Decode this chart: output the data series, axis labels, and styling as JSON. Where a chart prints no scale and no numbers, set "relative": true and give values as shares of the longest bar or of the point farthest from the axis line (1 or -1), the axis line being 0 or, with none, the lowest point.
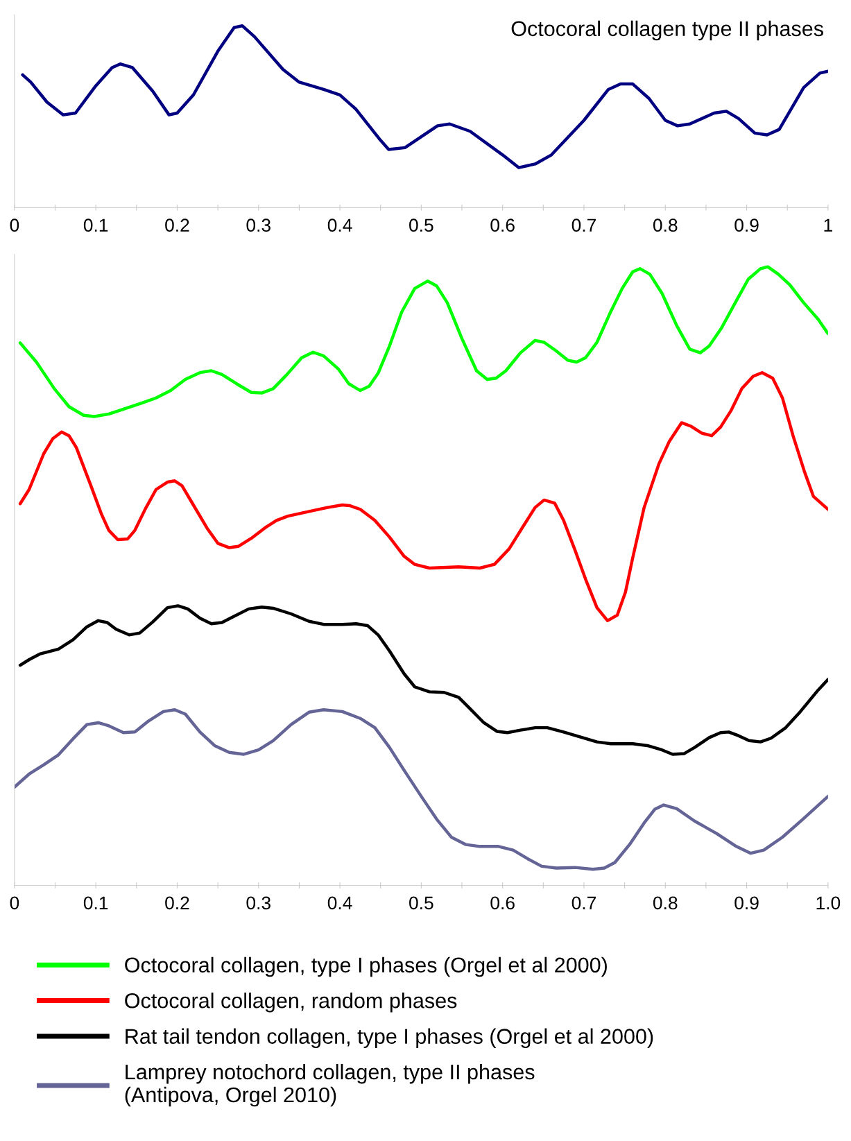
{
  "chart_data": [
    {
      "type": "line",
      "title": "Octocoral collagen type II phases",
      "relative": true,
      "grid": false,
      "marker": "none",
      "line_style": "solid",
      "xlim": [
        0,
        1
      ],
      "xticks": [
        0,
        {
          "value": 0.05,
          "label": null
        },
        0.1,
        {
          "value": 0.15,
          "label": null
        },
        0.2,
        {
          "value": 0.25,
          "label": null
        },
        0.3,
        {
          "value": 0.35,
          "label": null
        },
        0.4,
        {
          "value": 0.45,
          "label": null
        },
        0.5,
        {
          "value": 0.55,
          "label": null
        },
        0.6,
        {
          "value": 0.65,
          "label": null
        },
        0.7,
        {
          "value": 0.75,
          "label": null
        },
        0.8,
        {
          "value": 0.85,
          "label": null
        },
        0.9,
        {
          "value": 0.95,
          "label": null
        },
        1
      ],
      "series": [
        {
          "color": "#000080",
          "x": [
            0.01,
            0.02,
            0.04,
            0.06,
            0.075,
            0.1,
            0.12,
            0.13,
            0.145,
            0.17,
            0.19,
            0.2,
            0.22,
            0.25,
            0.27,
            0.28,
            0.295,
            0.33,
            0.35,
            0.38,
            0.4,
            0.42,
            0.45,
            0.46,
            0.48,
            0.5,
            0.52,
            0.535,
            0.56,
            0.6,
            0.62,
            0.64,
            0.66,
            0.7,
            0.73,
            0.745,
            0.76,
            0.78,
            0.8,
            0.815,
            0.83,
            0.86,
            0.875,
            0.89,
            0.91,
            0.925,
            0.94,
            0.97,
            0.99,
            1.0
          ],
          "values": [
            0.73,
            0.69,
            0.58,
            0.51,
            0.52,
            0.67,
            0.77,
            0.79,
            0.77,
            0.64,
            0.51,
            0.52,
            0.62,
            0.86,
            0.99,
            1.0,
            0.94,
            0.76,
            0.69,
            0.65,
            0.62,
            0.54,
            0.37,
            0.32,
            0.33,
            0.39,
            0.45,
            0.46,
            0.42,
            0.29,
            0.22,
            0.24,
            0.29,
            0.48,
            0.65,
            0.68,
            0.68,
            0.6,
            0.48,
            0.45,
            0.46,
            0.52,
            0.53,
            0.49,
            0.41,
            0.4,
            0.43,
            0.66,
            0.74,
            0.75
          ]
        }
      ]
    },
    {
      "type": "line",
      "relative": true,
      "grid": false,
      "marker": "none",
      "line_style": "solid",
      "legend": "bottom",
      "xlim": [
        0,
        1
      ],
      "xticks": [
        0,
        {
          "value": 0.05,
          "label": null
        },
        0.1,
        {
          "value": 0.15,
          "label": null
        },
        0.2,
        {
          "value": 0.25,
          "label": null
        },
        0.3,
        {
          "value": 0.35,
          "label": null
        },
        0.4,
        {
          "value": 0.45,
          "label": null
        },
        0.5,
        {
          "value": 0.55,
          "label": null
        },
        0.6,
        {
          "value": 0.65,
          "label": null
        },
        0.7,
        {
          "value": 0.75,
          "label": null
        },
        0.8,
        {
          "value": 0.85,
          "label": null
        },
        0.9,
        {
          "value": 0.95,
          "label": null
        },
        {
          "value": 1,
          "label": "1.0"
        }
      ],
      "series": [
        {
          "name": "Octocoral collagen, type I phases (Orgel et al 2000)",
          "color": "#00ff00",
          "x": [
            0.007,
            0.027,
            0.049,
            0.067,
            0.085,
            0.098,
            0.116,
            0.134,
            0.157,
            0.174,
            0.192,
            0.21,
            0.228,
            0.242,
            0.255,
            0.273,
            0.291,
            0.304,
            0.318,
            0.335,
            0.353,
            0.367,
            0.38,
            0.398,
            0.411,
            0.425,
            0.436,
            0.447,
            0.461,
            0.476,
            0.492,
            0.508,
            0.519,
            0.532,
            0.55,
            0.568,
            0.581,
            0.592,
            0.604,
            0.622,
            0.64,
            0.651,
            0.666,
            0.68,
            0.691,
            0.702,
            0.716,
            0.732,
            0.747,
            0.76,
            0.769,
            0.781,
            0.796,
            0.814,
            0.83,
            0.843,
            0.854,
            0.869,
            0.886,
            0.902,
            0.917,
            0.926,
            0.939,
            0.953,
            0.97,
            0.988,
            1.0
          ],
          "values": [
            0.877,
            0.846,
            0.803,
            0.774,
            0.76,
            0.758,
            0.762,
            0.77,
            0.78,
            0.788,
            0.8,
            0.818,
            0.829,
            0.832,
            0.826,
            0.811,
            0.797,
            0.796,
            0.803,
            0.826,
            0.853,
            0.862,
            0.856,
            0.835,
            0.811,
            0.8,
            0.807,
            0.828,
            0.872,
            0.927,
            0.965,
            0.977,
            0.969,
            0.942,
            0.884,
            0.832,
            0.818,
            0.82,
            0.832,
            0.861,
            0.881,
            0.878,
            0.864,
            0.849,
            0.846,
            0.853,
            0.878,
            0.925,
            0.965,
            0.992,
            0.997,
            0.988,
            0.957,
            0.905,
            0.867,
            0.861,
            0.872,
            0.901,
            0.942,
            0.98,
            0.997,
            1.0,
            0.988,
            0.971,
            0.942,
            0.915,
            0.892
          ]
        },
        {
          "name": "Octocoral collagen, random phases",
          "color": "#ff0000",
          "x": [
            0.007,
            0.018,
            0.036,
            0.047,
            0.058,
            0.067,
            0.076,
            0.094,
            0.107,
            0.116,
            0.127,
            0.139,
            0.148,
            0.161,
            0.174,
            0.188,
            0.197,
            0.206,
            0.219,
            0.237,
            0.25,
            0.264,
            0.275,
            0.291,
            0.309,
            0.322,
            0.336,
            0.367,
            0.385,
            0.403,
            0.412,
            0.425,
            0.443,
            0.461,
            0.479,
            0.492,
            0.51,
            0.546,
            0.572,
            0.59,
            0.608,
            0.626,
            0.64,
            0.651,
            0.664,
            0.675,
            0.689,
            0.702,
            0.716,
            0.729,
            0.741,
            0.751,
            0.76,
            0.774,
            0.792,
            0.805,
            0.82,
            0.832,
            0.845,
            0.857,
            0.868,
            0.881,
            0.894,
            0.908,
            0.919,
            0.932,
            0.944,
            0.957,
            0.971,
            0.982,
            1.0
          ],
          "values": [
            0.617,
            0.64,
            0.698,
            0.722,
            0.733,
            0.727,
            0.708,
            0.646,
            0.6,
            0.574,
            0.559,
            0.56,
            0.574,
            0.609,
            0.64,
            0.652,
            0.654,
            0.646,
            0.617,
            0.577,
            0.553,
            0.546,
            0.548,
            0.561,
            0.579,
            0.59,
            0.597,
            0.606,
            0.611,
            0.615,
            0.614,
            0.608,
            0.59,
            0.563,
            0.532,
            0.519,
            0.513,
            0.515,
            0.513,
            0.519,
            0.544,
            0.582,
            0.611,
            0.623,
            0.618,
            0.59,
            0.542,
            0.495,
            0.449,
            0.428,
            0.437,
            0.474,
            0.53,
            0.611,
            0.681,
            0.718,
            0.748,
            0.742,
            0.731,
            0.727,
            0.741,
            0.768,
            0.803,
            0.823,
            0.829,
            0.82,
            0.788,
            0.727,
            0.669,
            0.629,
            0.608
          ]
        },
        {
          "name": "Rat tail tendon collagen, type I phases (Orgel et al 2000)",
          "color": "#000000",
          "x": [
            0.007,
            0.018,
            0.031,
            0.054,
            0.072,
            0.089,
            0.103,
            0.114,
            0.125,
            0.141,
            0.154,
            0.17,
            0.188,
            0.201,
            0.213,
            0.228,
            0.242,
            0.255,
            0.27,
            0.288,
            0.304,
            0.318,
            0.34,
            0.362,
            0.38,
            0.403,
            0.42,
            0.434,
            0.447,
            0.461,
            0.479,
            0.492,
            0.51,
            0.528,
            0.546,
            0.559,
            0.577,
            0.593,
            0.606,
            0.622,
            0.64,
            0.655,
            0.675,
            0.698,
            0.716,
            0.733,
            0.76,
            0.778,
            0.796,
            0.809,
            0.823,
            0.836,
            0.854,
            0.868,
            0.878,
            0.89,
            0.903,
            0.917,
            0.93,
            0.948,
            0.966,
            0.988,
            1.0
          ],
          "values": [
            0.356,
            0.365,
            0.374,
            0.382,
            0.397,
            0.418,
            0.428,
            0.425,
            0.414,
            0.405,
            0.408,
            0.426,
            0.449,
            0.452,
            0.447,
            0.432,
            0.423,
            0.425,
            0.435,
            0.447,
            0.45,
            0.448,
            0.439,
            0.427,
            0.422,
            0.422,
            0.423,
            0.42,
            0.405,
            0.379,
            0.342,
            0.321,
            0.313,
            0.312,
            0.304,
            0.287,
            0.263,
            0.249,
            0.247,
            0.251,
            0.255,
            0.255,
            0.248,
            0.239,
            0.232,
            0.229,
            0.229,
            0.226,
            0.219,
            0.212,
            0.213,
            0.223,
            0.239,
            0.247,
            0.248,
            0.242,
            0.234,
            0.232,
            0.238,
            0.255,
            0.281,
            0.316,
            0.333
          ]
        },
        {
          "name": "Lamprey notochord collagen, type II phases\n(Antipova, Orgel 2010)",
          "color": "#646497",
          "x": [
            0,
            0.018,
            0.036,
            0.054,
            0.072,
            0.089,
            0.103,
            0.116,
            0.134,
            0.148,
            0.165,
            0.183,
            0.197,
            0.21,
            0.228,
            0.246,
            0.264,
            0.282,
            0.3,
            0.318,
            0.34,
            0.362,
            0.38,
            0.403,
            0.425,
            0.443,
            0.461,
            0.479,
            0.501,
            0.519,
            0.537,
            0.555,
            0.572,
            0.595,
            0.613,
            0.631,
            0.648,
            0.666,
            0.689,
            0.711,
            0.725,
            0.738,
            0.756,
            0.774,
            0.787,
            0.798,
            0.814,
            0.836,
            0.863,
            0.886,
            0.905,
            0.921,
            0.944,
            0.97,
            1.0
          ],
          "values": [
            0.159,
            0.18,
            0.195,
            0.211,
            0.237,
            0.26,
            0.263,
            0.258,
            0.247,
            0.248,
            0.266,
            0.281,
            0.284,
            0.277,
            0.248,
            0.226,
            0.215,
            0.212,
            0.219,
            0.234,
            0.26,
            0.28,
            0.284,
            0.281,
            0.27,
            0.255,
            0.223,
            0.186,
            0.142,
            0.107,
            0.078,
            0.066,
            0.063,
            0.063,
            0.057,
            0.043,
            0.031,
            0.028,
            0.029,
            0.026,
            0.028,
            0.037,
            0.066,
            0.101,
            0.123,
            0.13,
            0.124,
            0.104,
            0.084,
            0.064,
            0.052,
            0.057,
            0.078,
            0.108,
            0.144
          ]
        }
      ]
    }
  ]
}
